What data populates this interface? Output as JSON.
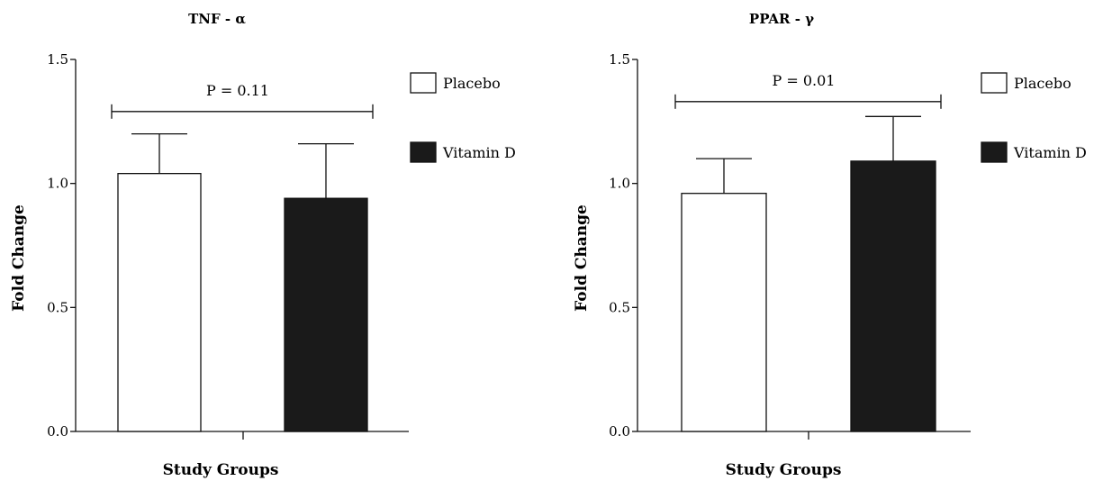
{
  "chart_data": [
    {
      "type": "bar",
      "title": "TNF - α",
      "xlabel": "Study Groups",
      "ylabel": "Fold Change",
      "ylim": [
        0,
        1.5
      ],
      "yticks": [
        "0.0",
        "0.5",
        "1.0",
        "1.5"
      ],
      "categories": [
        "Placebo",
        "Vitamin D"
      ],
      "values": [
        1.04,
        0.94
      ],
      "errors": [
        0.16,
        0.22
      ],
      "colors": [
        "#ffffff",
        "#1a1a1a"
      ],
      "legend": [
        {
          "label": "Placebo",
          "color": "#ffffff"
        },
        {
          "label": "Vitamin D",
          "color": "#1a1a1a"
        }
      ],
      "legend_position": "right",
      "annotation": {
        "text": "P = 0.11",
        "y": 1.29
      },
      "grid": false
    },
    {
      "type": "bar",
      "title": "PPAR - γ",
      "xlabel": "Study Groups",
      "ylabel": "Fold Change",
      "ylim": [
        0,
        1.5
      ],
      "yticks": [
        "0.0",
        "0.5",
        "1.0",
        "1.5"
      ],
      "categories": [
        "Placebo",
        "Vitamin D"
      ],
      "values": [
        0.96,
        1.09
      ],
      "errors": [
        0.14,
        0.18
      ],
      "colors": [
        "#ffffff",
        "#1a1a1a"
      ],
      "legend": [
        {
          "label": "Placebo",
          "color": "#ffffff"
        },
        {
          "label": "Vitamin D",
          "color": "#1a1a1a"
        }
      ],
      "legend_position": "right",
      "annotation": {
        "text": "P = 0.01",
        "y": 1.33
      },
      "grid": false
    }
  ]
}
